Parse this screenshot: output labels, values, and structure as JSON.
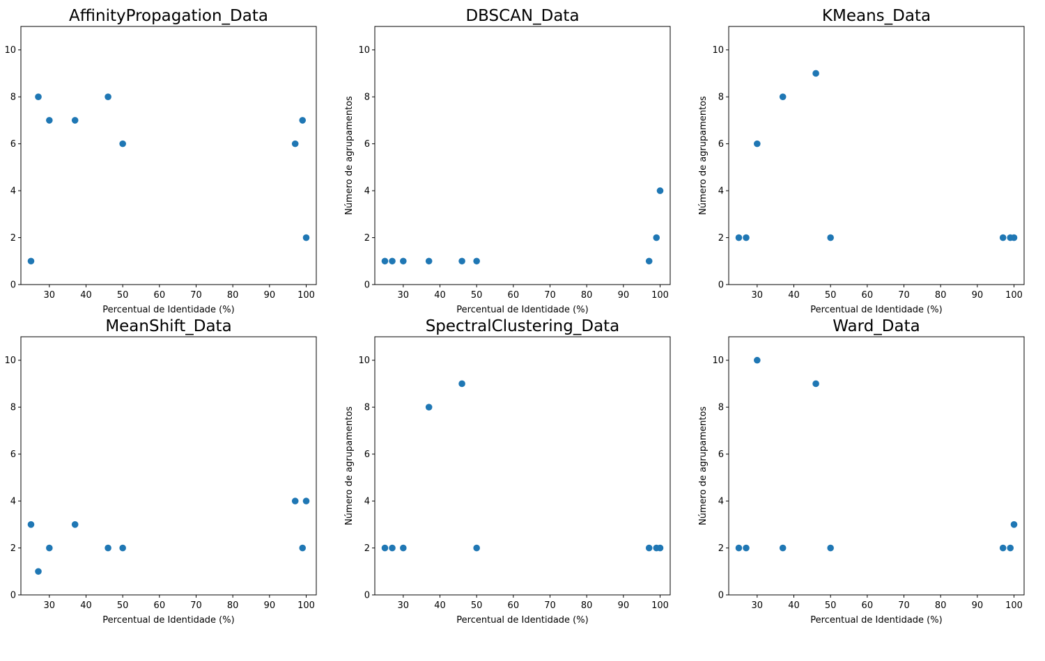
{
  "marker_color": "#1f77b4",
  "chart_data": [
    {
      "type": "scatter",
      "title": "AffinityPropagation_Data",
      "xlabel": "Percentual de Identidade (%)",
      "ylabel": "",
      "xlim": [
        22.25,
        102.75
      ],
      "ylim": [
        0,
        11
      ],
      "xticks": [
        30,
        40,
        50,
        60,
        70,
        80,
        90,
        100
      ],
      "yticks": [
        0,
        2,
        4,
        6,
        8,
        10
      ],
      "grid": false,
      "points": [
        [
          25,
          1
        ],
        [
          27,
          8
        ],
        [
          30,
          7
        ],
        [
          37,
          7
        ],
        [
          46,
          8
        ],
        [
          50,
          6
        ],
        [
          97,
          6
        ],
        [
          99,
          7
        ],
        [
          100,
          2
        ]
      ]
    },
    {
      "type": "scatter",
      "title": "DBSCAN_Data",
      "xlabel": "Percentual de Identidade (%)",
      "ylabel": "Número de agrupamentos",
      "xlim": [
        22.25,
        102.75
      ],
      "ylim": [
        0,
        11
      ],
      "xticks": [
        30,
        40,
        50,
        60,
        70,
        80,
        90,
        100
      ],
      "yticks": [
        0,
        2,
        4,
        6,
        8,
        10
      ],
      "grid": false,
      "points": [
        [
          25,
          1
        ],
        [
          27,
          1
        ],
        [
          30,
          1
        ],
        [
          37,
          1
        ],
        [
          46,
          1
        ],
        [
          50,
          1
        ],
        [
          97,
          1
        ],
        [
          99,
          2
        ],
        [
          100,
          4
        ]
      ]
    },
    {
      "type": "scatter",
      "title": "KMeans_Data",
      "xlabel": "Percentual de Identidade (%)",
      "ylabel": "Número de agrupamentos",
      "xlim": [
        22.25,
        102.75
      ],
      "ylim": [
        0,
        11
      ],
      "xticks": [
        30,
        40,
        50,
        60,
        70,
        80,
        90,
        100
      ],
      "yticks": [
        0,
        2,
        4,
        6,
        8,
        10
      ],
      "grid": false,
      "points": [
        [
          25,
          2
        ],
        [
          27,
          2
        ],
        [
          30,
          6
        ],
        [
          37,
          8
        ],
        [
          46,
          9
        ],
        [
          50,
          2
        ],
        [
          97,
          2
        ],
        [
          99,
          2
        ],
        [
          100,
          2
        ]
      ]
    },
    {
      "type": "scatter",
      "title": "MeanShift_Data",
      "xlabel": "Percentual de Identidade (%)",
      "ylabel": "",
      "xlim": [
        22.25,
        102.75
      ],
      "ylim": [
        0,
        11
      ],
      "xticks": [
        30,
        40,
        50,
        60,
        70,
        80,
        90,
        100
      ],
      "yticks": [
        0,
        2,
        4,
        6,
        8,
        10
      ],
      "grid": false,
      "points": [
        [
          25,
          3
        ],
        [
          27,
          1
        ],
        [
          30,
          2
        ],
        [
          37,
          3
        ],
        [
          46,
          2
        ],
        [
          50,
          2
        ],
        [
          97,
          4
        ],
        [
          99,
          2
        ],
        [
          100,
          4
        ]
      ]
    },
    {
      "type": "scatter",
      "title": "SpectralClustering_Data",
      "xlabel": "Percentual de Identidade (%)",
      "ylabel": "Número de agrupamentos",
      "xlim": [
        22.25,
        102.75
      ],
      "ylim": [
        0,
        11
      ],
      "xticks": [
        30,
        40,
        50,
        60,
        70,
        80,
        90,
        100
      ],
      "yticks": [
        0,
        2,
        4,
        6,
        8,
        10
      ],
      "grid": false,
      "points": [
        [
          25,
          2
        ],
        [
          27,
          2
        ],
        [
          30,
          2
        ],
        [
          37,
          8
        ],
        [
          46,
          9
        ],
        [
          50,
          2
        ],
        [
          97,
          2
        ],
        [
          99,
          2
        ],
        [
          100,
          2
        ]
      ]
    },
    {
      "type": "scatter",
      "title": "Ward_Data",
      "xlabel": "Percentual de Identidade (%)",
      "ylabel": "Número de agrupamentos",
      "xlim": [
        22.25,
        102.75
      ],
      "ylim": [
        0,
        11
      ],
      "xticks": [
        30,
        40,
        50,
        60,
        70,
        80,
        90,
        100
      ],
      "yticks": [
        0,
        2,
        4,
        6,
        8,
        10
      ],
      "grid": false,
      "points": [
        [
          25,
          2
        ],
        [
          27,
          2
        ],
        [
          30,
          10
        ],
        [
          37,
          2
        ],
        [
          46,
          9
        ],
        [
          50,
          2
        ],
        [
          97,
          2
        ],
        [
          99,
          2
        ],
        [
          100,
          3
        ]
      ]
    }
  ]
}
